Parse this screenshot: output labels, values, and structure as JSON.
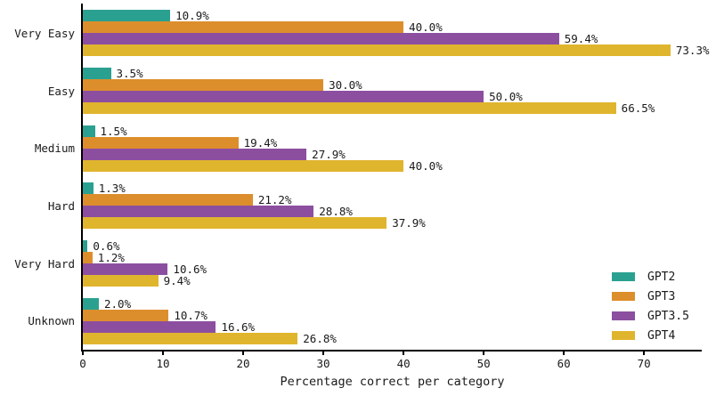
{
  "chart_data": {
    "type": "bar",
    "orientation": "horizontal",
    "title": "",
    "xlabel": "Percentage correct per category",
    "ylabel": "",
    "categories": [
      "Very Easy",
      "Easy",
      "Medium",
      "Hard",
      "Very Hard",
      "Unknown"
    ],
    "series": [
      {
        "name": "GPT2",
        "color": "#2aa190",
        "values": [
          10.9,
          3.5,
          1.5,
          1.3,
          0.6,
          2.0
        ]
      },
      {
        "name": "GPT3",
        "color": "#dd8e2c",
        "values": [
          40.0,
          30.0,
          19.4,
          21.2,
          1.2,
          10.7
        ]
      },
      {
        "name": "GPT3.5",
        "color": "#8c4fa0",
        "values": [
          59.4,
          50.0,
          27.9,
          28.8,
          10.6,
          16.6
        ]
      },
      {
        "name": "GPT4",
        "color": "#e0b52e",
        "values": [
          73.3,
          66.5,
          40.0,
          37.9,
          9.4,
          26.8
        ]
      }
    ],
    "value_label_suffix": "%",
    "xticks": [
      0,
      10,
      20,
      30,
      40,
      50,
      60,
      70
    ],
    "xlim": [
      0,
      77.2
    ],
    "grid": false,
    "legend_position": "lower right",
    "axis_color": "#000000",
    "text_color": "#1a1a1a",
    "background_color": "#ffffff"
  }
}
